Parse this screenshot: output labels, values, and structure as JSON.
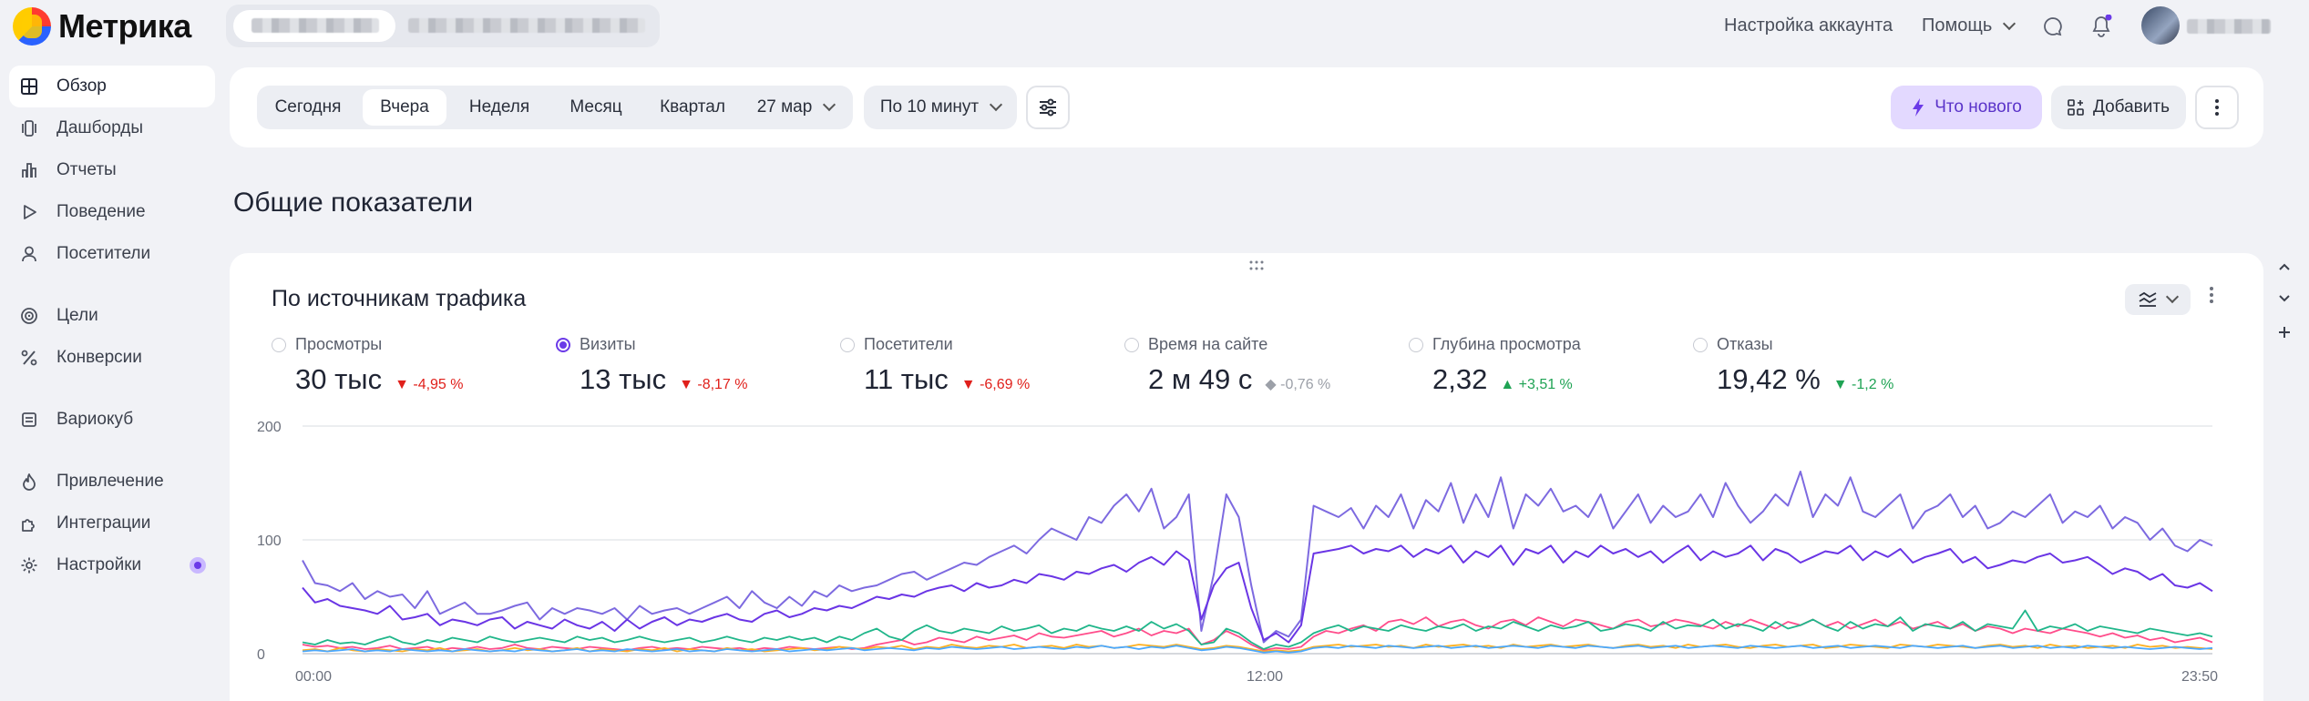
{
  "app": {
    "name": "Метрика"
  },
  "header": {
    "account_settings": "Настройка аккаунта",
    "help": "Помощь",
    "icons": [
      "chat-icon",
      "bell-icon"
    ]
  },
  "sidebar": {
    "items": [
      {
        "label": "Обзор",
        "icon": "grid-icon",
        "active": true
      },
      {
        "label": "Дашборды",
        "icon": "dashboards-icon"
      },
      {
        "label": "Отчеты",
        "icon": "bar-chart-icon"
      },
      {
        "label": "Поведение",
        "icon": "play-icon"
      },
      {
        "label": "Посетители",
        "icon": "user-icon"
      },
      {
        "label": "Цели",
        "icon": "target-icon"
      },
      {
        "label": "Конверсии",
        "icon": "percent-icon"
      },
      {
        "label": "Вариокуб",
        "icon": "cube-icon"
      },
      {
        "label": "Привлечение",
        "icon": "fire-icon"
      },
      {
        "label": "Интеграции",
        "icon": "puzzle-icon"
      },
      {
        "label": "Настройки",
        "icon": "gear-icon",
        "badge": true
      }
    ]
  },
  "filters": {
    "periods": [
      "Сегодня",
      "Вчера",
      "Неделя",
      "Месяц",
      "Квартал"
    ],
    "selected_period": "Вчера",
    "date": "27 мар",
    "granularity": "По 10 минут",
    "whats_new": "Что нового",
    "add": "Добавить"
  },
  "section_title": "Общие показатели",
  "widget": {
    "title": "По источникам трафика",
    "metrics": [
      {
        "label": "Просмотры",
        "value": "30 тыс",
        "delta": "-4,95 %",
        "trend": "down",
        "selected": false
      },
      {
        "label": "Визиты",
        "value": "13 тыс",
        "delta": "-8,17 %",
        "trend": "down",
        "selected": true
      },
      {
        "label": "Посетители",
        "value": "11 тыс",
        "delta": "-6,69 %",
        "trend": "down",
        "selected": false
      },
      {
        "label": "Время на сайте",
        "value": "2 м 49 с",
        "delta": "-0,76 %",
        "trend": "neutral",
        "selected": false
      },
      {
        "label": "Глубина просмотра",
        "value": "2,32",
        "delta": "+3,51 %",
        "trend": "up",
        "selected": false
      },
      {
        "label": "Отказы",
        "value": "19,42 %",
        "delta": "-1,2 %",
        "trend": "down-good",
        "selected": false
      }
    ]
  },
  "chart_data": {
    "type": "line",
    "y_ticks": [
      "200",
      "100",
      "0"
    ],
    "ylim": [
      0,
      200
    ],
    "x_ticks": [
      "00:00",
      "12:00",
      "23:50"
    ],
    "grid": true,
    "series": [
      {
        "color": "#7d6ae0",
        "values": [
          82,
          62,
          60,
          55,
          62,
          48,
          55,
          50,
          52,
          40,
          55,
          35,
          40,
          45,
          35,
          35,
          38,
          42,
          45,
          30,
          40,
          35,
          40,
          38,
          35,
          40,
          30,
          42,
          35,
          38,
          40,
          35,
          40,
          45,
          50,
          40,
          55,
          45,
          40,
          50,
          42,
          55,
          50,
          60,
          55,
          58,
          60,
          65,
          70,
          72,
          65,
          70,
          75,
          80,
          78,
          85,
          90,
          95,
          88,
          100,
          110,
          105,
          100,
          120,
          115,
          130,
          140,
          125,
          145,
          110,
          120,
          140,
          20,
          70,
          140,
          120,
          60,
          10,
          20,
          15,
          30,
          130,
          125,
          120,
          128,
          110,
          130,
          120,
          140,
          110,
          135,
          125,
          150,
          115,
          140,
          120,
          155,
          110,
          140,
          130,
          145,
          125,
          130,
          120,
          140,
          110,
          125,
          140,
          115,
          130,
          120,
          125,
          140,
          120,
          150,
          130,
          115,
          125,
          140,
          130,
          160,
          120,
          140,
          130,
          155,
          125,
          120,
          130,
          140,
          110,
          125,
          130,
          140,
          120,
          130,
          110,
          115,
          125,
          120,
          130,
          140,
          115,
          125,
          120,
          130,
          110,
          120,
          115,
          100,
          110,
          95,
          90,
          100,
          95
        ]
      },
      {
        "color": "#6a35e5",
        "values": [
          58,
          45,
          48,
          42,
          40,
          38,
          35,
          42,
          30,
          32,
          35,
          25,
          30,
          28,
          25,
          30,
          32,
          22,
          28,
          25,
          22,
          30,
          25,
          22,
          28,
          20,
          30,
          22,
          28,
          32,
          25,
          30,
          28,
          32,
          35,
          30,
          28,
          35,
          38,
          32,
          35,
          40,
          38,
          42,
          40,
          45,
          50,
          48,
          52,
          50,
          55,
          58,
          60,
          55,
          62,
          58,
          60,
          65,
          62,
          70,
          68,
          65,
          72,
          70,
          75,
          78,
          72,
          80,
          85,
          78,
          90,
          82,
          30,
          60,
          75,
          80,
          40,
          12,
          18,
          10,
          25,
          88,
          90,
          92,
          95,
          88,
          92,
          90,
          95,
          85,
          92,
          88,
          95,
          80,
          90,
          85,
          95,
          78,
          92,
          88,
          95,
          80,
          90,
          85,
          95,
          88,
          92,
          85,
          90,
          80,
          88,
          95,
          82,
          90,
          85,
          88,
          95,
          82,
          92,
          88,
          80,
          85,
          90,
          88,
          95,
          82,
          90,
          85,
          92,
          80,
          85,
          88,
          92,
          80,
          85,
          75,
          78,
          82,
          80,
          85,
          88,
          80,
          82,
          85,
          78,
          70,
          75,
          72,
          65,
          70,
          60,
          58,
          62,
          55
        ]
      },
      {
        "color": "#ff4d8b",
        "values": [
          8,
          6,
          7,
          5,
          6,
          4,
          5,
          7,
          4,
          5,
          6,
          3,
          5,
          4,
          6,
          4,
          5,
          8,
          5,
          4,
          6,
          5,
          4,
          6,
          5,
          4,
          3,
          5,
          6,
          4,
          5,
          4,
          6,
          5,
          4,
          5,
          3,
          5,
          4,
          6,
          5,
          4,
          5,
          6,
          4,
          5,
          8,
          10,
          12,
          8,
          10,
          14,
          12,
          10,
          15,
          12,
          14,
          16,
          12,
          18,
          15,
          14,
          16,
          18,
          20,
          15,
          18,
          22,
          16,
          20,
          18,
          22,
          8,
          12,
          20,
          15,
          8,
          3,
          5,
          4,
          6,
          15,
          20,
          18,
          22,
          25,
          20,
          28,
          30,
          26,
          32,
          24,
          28,
          30,
          25,
          22,
          28,
          30,
          25,
          32,
          28,
          24,
          30,
          28,
          25,
          22,
          28,
          30,
          24,
          26,
          30,
          28,
          25,
          22,
          28,
          24,
          30,
          26,
          22,
          28,
          25,
          30,
          24,
          28,
          22,
          26,
          30,
          24,
          28,
          22,
          25,
          28,
          22,
          26,
          20,
          24,
          22,
          18,
          22,
          20,
          18,
          22,
          20,
          18,
          15,
          18,
          14,
          16,
          12,
          14,
          10,
          12,
          14,
          10
        ]
      },
      {
        "color": "#20b68a",
        "values": [
          10,
          8,
          12,
          9,
          10,
          8,
          12,
          15,
          10,
          8,
          12,
          10,
          14,
          12,
          10,
          15,
          12,
          10,
          12,
          14,
          12,
          10,
          15,
          12,
          14,
          10,
          12,
          15,
          12,
          10,
          12,
          14,
          10,
          12,
          15,
          12,
          10,
          14,
          12,
          15,
          12,
          14,
          10,
          15,
          12,
          18,
          22,
          15,
          12,
          20,
          25,
          20,
          18,
          22,
          20,
          18,
          24,
          20,
          22,
          25,
          18,
          22,
          20,
          25,
          22,
          20,
          24,
          20,
          28,
          22,
          26,
          20,
          8,
          10,
          22,
          18,
          10,
          4,
          8,
          6,
          10,
          18,
          22,
          25,
          20,
          24,
          22,
          20,
          25,
          22,
          20,
          24,
          22,
          26,
          20,
          24,
          22,
          28,
          24,
          20,
          25,
          22,
          24,
          28,
          20,
          22,
          26,
          24,
          20,
          28,
          22,
          25,
          24,
          30,
          22,
          26,
          24,
          20,
          28,
          22,
          25,
          30,
          24,
          20,
          28,
          22,
          26,
          24,
          32,
          20,
          26,
          24,
          22,
          28,
          20,
          26,
          24,
          22,
          38,
          20,
          24,
          22,
          26,
          20,
          24,
          22,
          20,
          18,
          22,
          20,
          18,
          16,
          18,
          15
        ]
      },
      {
        "color": "#ffb020",
        "values": [
          3,
          4,
          2,
          5,
          3,
          2,
          4,
          3,
          2,
          4,
          3,
          5,
          2,
          3,
          4,
          2,
          3,
          5,
          3,
          4,
          2,
          3,
          5,
          2,
          4,
          3,
          2,
          4,
          3,
          5,
          2,
          4,
          3,
          2,
          5,
          3,
          4,
          2,
          3,
          4,
          5,
          3,
          4,
          6,
          5,
          4,
          6,
          5,
          7,
          4,
          6,
          5,
          8,
          6,
          5,
          7,
          6,
          8,
          5,
          6,
          7,
          5,
          8,
          6,
          7,
          5,
          6,
          8,
          7,
          6,
          8,
          6,
          4,
          5,
          7,
          6,
          4,
          2,
          3,
          2,
          3,
          6,
          7,
          8,
          6,
          7,
          8,
          6,
          7,
          5,
          8,
          6,
          7,
          8,
          6,
          7,
          5,
          8,
          6,
          7,
          8,
          6,
          7,
          8,
          6,
          5,
          7,
          8,
          6,
          7,
          5,
          8,
          6,
          7,
          8,
          6,
          5,
          7,
          8,
          6,
          7,
          8,
          5,
          6,
          8,
          7,
          6,
          5,
          8,
          7,
          6,
          8,
          7,
          6,
          5,
          7,
          8,
          6,
          7,
          5,
          8,
          6,
          7,
          5,
          6,
          7,
          5,
          8,
          6,
          7,
          5,
          6,
          5,
          4
        ]
      },
      {
        "color": "#4aa8ff",
        "values": [
          2,
          3,
          2,
          3,
          4,
          2,
          3,
          2,
          4,
          3,
          2,
          3,
          2,
          4,
          3,
          2,
          3,
          2,
          4,
          3,
          2,
          3,
          4,
          2,
          3,
          2,
          4,
          3,
          2,
          3,
          4,
          2,
          3,
          2,
          4,
          3,
          2,
          3,
          4,
          2,
          3,
          4,
          3,
          4,
          5,
          3,
          4,
          5,
          4,
          3,
          5,
          4,
          6,
          5,
          4,
          5,
          6,
          4,
          5,
          6,
          5,
          4,
          6,
          5,
          7,
          5,
          6,
          4,
          6,
          5,
          7,
          5,
          3,
          4,
          6,
          5,
          3,
          1,
          2,
          1,
          2,
          5,
          6,
          5,
          7,
          6,
          5,
          7,
          6,
          5,
          6,
          7,
          5,
          6,
          7,
          5,
          6,
          7,
          6,
          5,
          7,
          6,
          5,
          7,
          6,
          5,
          6,
          7,
          5,
          6,
          7,
          5,
          6,
          7,
          6,
          5,
          7,
          6,
          5,
          6,
          7,
          5,
          6,
          7,
          5,
          6,
          7,
          6,
          5,
          7,
          6,
          5,
          6,
          7,
          5,
          6,
          7,
          5,
          6,
          7,
          5,
          6,
          5,
          7,
          6,
          5,
          6,
          5,
          4,
          5,
          6,
          5,
          4,
          5
        ]
      }
    ]
  }
}
